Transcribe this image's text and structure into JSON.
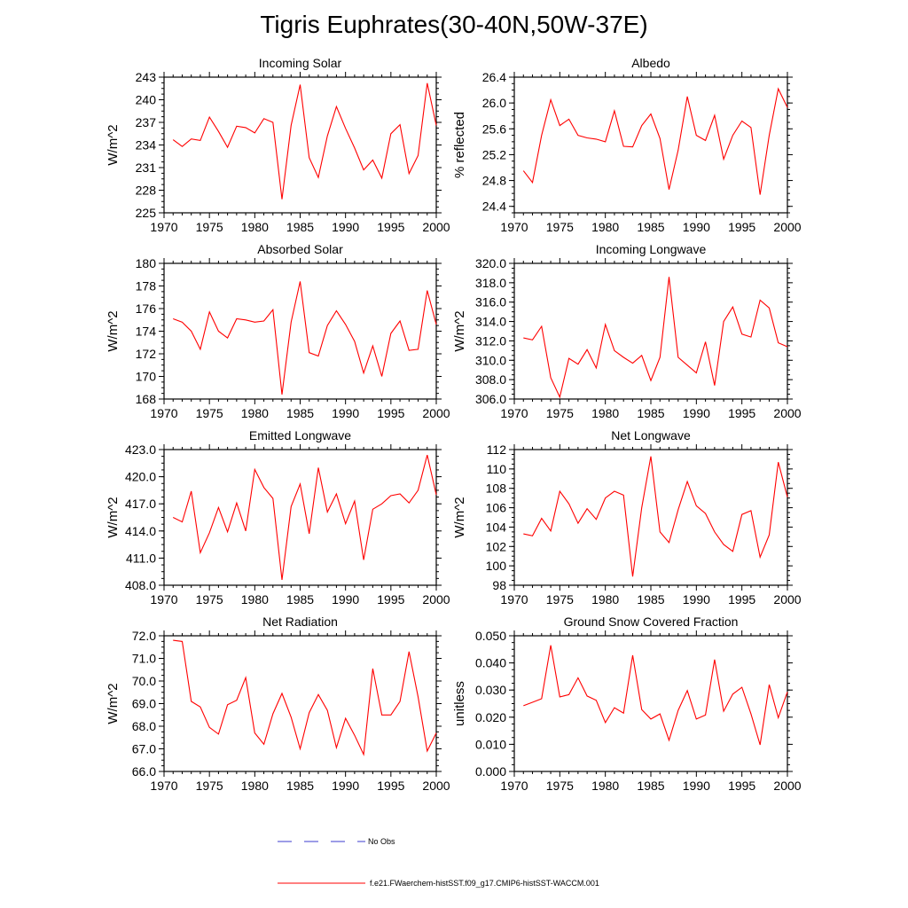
{
  "title": "Tigris Euphrates(30-40N,50W-37E)",
  "colors": {
    "series": "#ff0000",
    "no_obs": "#3b3bcf",
    "axis": "#000000"
  },
  "legend": {
    "entries": [
      {
        "label": "No Obs",
        "style": "dashed",
        "color": "#3b3bcf"
      },
      {
        "label": "f.e21.FWaerchem-histSST.f09_g17.CMIP6-histSST-WACCM.001",
        "style": "solid",
        "color": "#ff0000"
      }
    ]
  },
  "chart_data": [
    {
      "type": "line",
      "title": "Incoming Solar",
      "ylabel": "W/m^2",
      "xlim": [
        1970,
        2000
      ],
      "ylim": [
        225,
        243
      ],
      "xticks": [
        1970,
        1975,
        1980,
        1985,
        1990,
        1995,
        2000
      ],
      "yticks": [
        "225",
        "228",
        "231",
        "234",
        "237",
        "240",
        "243"
      ],
      "x": [
        1971,
        1972,
        1973,
        1974,
        1975,
        1976,
        1977,
        1978,
        1979,
        1980,
        1981,
        1982,
        1983,
        1984,
        1985,
        1986,
        1987,
        1988,
        1989,
        1990,
        1991,
        1992,
        1993,
        1994,
        1995,
        1996,
        1997,
        1998,
        1999,
        2000
      ],
      "series": [
        {
          "values": [
            234.7,
            233.8,
            234.8,
            234.6,
            237.7,
            235.8,
            233.7,
            236.5,
            236.3,
            235.6,
            237.5,
            237.0,
            226.8,
            236.6,
            242.0,
            232.3,
            229.7,
            235.2,
            239.1,
            236.2,
            233.6,
            230.7,
            232.0,
            229.6,
            235.5,
            236.7,
            230.2,
            232.6,
            242.2,
            236.6
          ]
        }
      ]
    },
    {
      "type": "line",
      "title": "Albedo",
      "ylabel": "% reflected",
      "xlim": [
        1970,
        2000
      ],
      "ylim": [
        24.3,
        26.4
      ],
      "xticks": [
        1970,
        1975,
        1980,
        1985,
        1990,
        1995,
        2000
      ],
      "yticks": [
        "24.4",
        "24.8",
        "25.2",
        "25.6",
        "26.0",
        "26.4"
      ],
      "x": [
        1971,
        1972,
        1973,
        1974,
        1975,
        1976,
        1977,
        1978,
        1979,
        1980,
        1981,
        1982,
        1983,
        1984,
        1985,
        1986,
        1987,
        1988,
        1989,
        1990,
        1991,
        1992,
        1993,
        1994,
        1995,
        1996,
        1997,
        1998,
        1999,
        2000
      ],
      "series": [
        {
          "values": [
            24.95,
            24.77,
            25.5,
            26.05,
            25.65,
            25.75,
            25.5,
            25.46,
            25.44,
            25.4,
            25.88,
            25.33,
            25.32,
            25.65,
            25.83,
            25.45,
            24.66,
            25.27,
            26.1,
            25.5,
            25.42,
            25.81,
            25.13,
            25.5,
            25.72,
            25.62,
            24.58,
            25.5,
            26.22,
            25.93
          ]
        }
      ]
    },
    {
      "type": "line",
      "title": "Absorbed Solar",
      "ylabel": "W/m^2",
      "xlim": [
        1970,
        2000
      ],
      "ylim": [
        168,
        180
      ],
      "xticks": [
        1970,
        1975,
        1980,
        1985,
        1990,
        1995,
        2000
      ],
      "yticks": [
        "168",
        "170",
        "172",
        "174",
        "176",
        "178",
        "180"
      ],
      "x": [
        1971,
        1972,
        1973,
        1974,
        1975,
        1976,
        1977,
        1978,
        1979,
        1980,
        1981,
        1982,
        1983,
        1984,
        1985,
        1986,
        1987,
        1988,
        1989,
        1990,
        1991,
        1992,
        1993,
        1994,
        1995,
        1996,
        1997,
        1998,
        1999,
        2000
      ],
      "series": [
        {
          "values": [
            175.1,
            174.8,
            174.0,
            172.4,
            175.7,
            174.0,
            173.4,
            175.1,
            175.0,
            174.8,
            174.9,
            175.9,
            168.4,
            174.8,
            178.4,
            172.1,
            171.8,
            174.5,
            175.8,
            174.6,
            173.1,
            170.3,
            172.7,
            170.0,
            173.8,
            174.9,
            172.3,
            172.4,
            177.6,
            174.6
          ]
        }
      ]
    },
    {
      "type": "line",
      "title": "Incoming Longwave",
      "ylabel": "W/m^2",
      "xlim": [
        1970,
        2000
      ],
      "ylim": [
        306,
        320
      ],
      "xticks": [
        1970,
        1975,
        1980,
        1985,
        1990,
        1995,
        2000
      ],
      "yticks": [
        "306.0",
        "308.0",
        "310.0",
        "312.0",
        "314.0",
        "316.0",
        "318.0",
        "320.0"
      ],
      "x": [
        1971,
        1972,
        1973,
        1974,
        1975,
        1976,
        1977,
        1978,
        1979,
        1980,
        1981,
        1982,
        1983,
        1984,
        1985,
        1986,
        1987,
        1988,
        1989,
        1990,
        1991,
        1992,
        1993,
        1994,
        1995,
        1996,
        1997,
        1998,
        1999,
        2000
      ],
      "series": [
        {
          "values": [
            312.3,
            312.1,
            313.5,
            308.2,
            306.2,
            310.2,
            309.6,
            311.1,
            309.2,
            313.7,
            311.0,
            310.3,
            309.7,
            310.5,
            307.9,
            310.3,
            318.6,
            310.3,
            309.5,
            308.7,
            311.9,
            307.4,
            314.0,
            315.5,
            312.7,
            312.4,
            316.2,
            315.4,
            311.8,
            311.4
          ]
        }
      ]
    },
    {
      "type": "line",
      "title": "Emitted Longwave",
      "ylabel": "W/m^2",
      "xlim": [
        1970,
        2000
      ],
      "ylim": [
        408,
        423
      ],
      "xticks": [
        1970,
        1975,
        1980,
        1985,
        1990,
        1995,
        2000
      ],
      "yticks": [
        "408.0",
        "411.0",
        "414.0",
        "417.0",
        "420.0",
        "423.0"
      ],
      "x": [
        1971,
        1972,
        1973,
        1974,
        1975,
        1976,
        1977,
        1978,
        1979,
        1980,
        1981,
        1982,
        1983,
        1984,
        1985,
        1986,
        1987,
        1988,
        1989,
        1990,
        1991,
        1992,
        1993,
        1994,
        1995,
        1996,
        1997,
        1998,
        1999,
        2000
      ],
      "series": [
        {
          "values": [
            415.5,
            415.0,
            418.4,
            411.6,
            413.8,
            416.6,
            413.9,
            417.1,
            414.0,
            420.8,
            418.8,
            417.6,
            408.6,
            416.7,
            419.2,
            413.7,
            421.0,
            416.1,
            418.1,
            414.8,
            417.3,
            410.8,
            416.4,
            417.0,
            417.9,
            418.1,
            417.1,
            418.5,
            422.4,
            418.0
          ]
        }
      ]
    },
    {
      "type": "line",
      "title": "Net Longwave",
      "ylabel": "W/m^2",
      "xlim": [
        1970,
        2000
      ],
      "ylim": [
        98,
        112
      ],
      "xticks": [
        1970,
        1975,
        1980,
        1985,
        1990,
        1995,
        2000
      ],
      "yticks": [
        "98",
        "100",
        "102",
        "104",
        "106",
        "108",
        "110",
        "112"
      ],
      "x": [
        1971,
        1972,
        1973,
        1974,
        1975,
        1976,
        1977,
        1978,
        1979,
        1980,
        1981,
        1982,
        1983,
        1984,
        1985,
        1986,
        1987,
        1988,
        1989,
        1990,
        1991,
        1992,
        1993,
        1994,
        1995,
        1996,
        1997,
        1998,
        1999,
        2000
      ],
      "series": [
        {
          "values": [
            103.3,
            103.1,
            104.9,
            103.6,
            107.7,
            106.4,
            104.4,
            105.9,
            104.8,
            107.0,
            107.7,
            107.3,
            98.9,
            106.0,
            111.3,
            103.5,
            102.4,
            105.8,
            108.7,
            106.2,
            105.4,
            103.5,
            102.2,
            101.5,
            105.3,
            105.7,
            100.9,
            103.2,
            110.7,
            107.1
          ]
        }
      ]
    },
    {
      "type": "line",
      "title": "Net Radiation",
      "ylabel": "W/m^2",
      "xlim": [
        1970,
        2000
      ],
      "ylim": [
        66,
        72
      ],
      "xticks": [
        1970,
        1975,
        1980,
        1985,
        1990,
        1995,
        2000
      ],
      "yticks": [
        "66.0",
        "67.0",
        "68.0",
        "69.0",
        "70.0",
        "71.0",
        "72.0"
      ],
      "x": [
        1971,
        1972,
        1973,
        1974,
        1975,
        1976,
        1977,
        1978,
        1979,
        1980,
        1981,
        1982,
        1983,
        1984,
        1985,
        1986,
        1987,
        1988,
        1989,
        1990,
        1991,
        1992,
        1993,
        1994,
        1995,
        1996,
        1997,
        1998,
        1999,
        2000
      ],
      "series": [
        {
          "values": [
            71.8,
            71.75,
            69.1,
            68.85,
            67.95,
            67.65,
            68.95,
            69.15,
            70.15,
            67.7,
            67.2,
            68.55,
            69.45,
            68.4,
            67.0,
            68.6,
            69.4,
            68.7,
            67.05,
            68.35,
            67.6,
            66.75,
            70.55,
            68.5,
            68.5,
            69.1,
            71.3,
            69.3,
            66.9,
            67.7
          ]
        }
      ]
    },
    {
      "type": "line",
      "title": "Ground Snow Covered Fraction",
      "ylabel": "unitless",
      "xlim": [
        1970,
        2000
      ],
      "ylim": [
        0,
        0.05
      ],
      "xticks": [
        1970,
        1975,
        1980,
        1985,
        1990,
        1995,
        2000
      ],
      "yticks": [
        "0.000",
        "0.010",
        "0.020",
        "0.030",
        "0.040",
        "0.050"
      ],
      "x": [
        1971,
        1972,
        1973,
        1974,
        1975,
        1976,
        1977,
        1978,
        1979,
        1980,
        1981,
        1982,
        1983,
        1984,
        1985,
        1986,
        1987,
        1988,
        1989,
        1990,
        1991,
        1992,
        1993,
        1994,
        1995,
        1996,
        1997,
        1998,
        1999,
        2000
      ],
      "series": [
        {
          "values": [
            0.0242,
            0.0255,
            0.0268,
            0.0465,
            0.0275,
            0.0283,
            0.0345,
            0.0278,
            0.0262,
            0.018,
            0.0235,
            0.0215,
            0.0428,
            0.0228,
            0.0193,
            0.0212,
            0.0115,
            0.0225,
            0.0298,
            0.0193,
            0.0208,
            0.0412,
            0.0222,
            0.0285,
            0.031,
            0.0212,
            0.0098,
            0.032,
            0.0198,
            0.0293
          ]
        }
      ]
    }
  ]
}
